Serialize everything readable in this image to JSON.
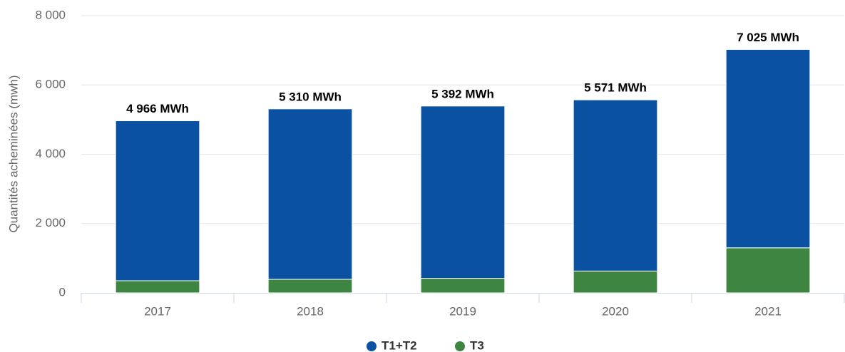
{
  "chart_data": {
    "type": "stacked_bar",
    "y_axis_label": "Quantités acheminées (mwh)",
    "categories": [
      "2017",
      "2018",
      "2019",
      "2020",
      "2021"
    ],
    "series": [
      {
        "name": "T3",
        "color": "#3d8541",
        "values": [
          350,
          390,
          420,
          630,
          1300
        ]
      },
      {
        "name": "T1+T2",
        "color": "#0a52a1",
        "values": [
          4616,
          4920,
          4972,
          4941,
          5725
        ]
      }
    ],
    "legend_order": [
      1,
      0
    ],
    "totals": [
      4966,
      5310,
      5392,
      5571,
      7025
    ],
    "total_labels": [
      "4 966 MWh",
      "5 310 MWh",
      "5 392 MWh",
      "5 571 MWh",
      "7 025 MWh"
    ],
    "ylim": [
      0,
      8000
    ],
    "yticks": [
      0,
      {
        "value": 2000,
        "label": "2 000"
      },
      {
        "value": 4000,
        "label": "4 000"
      },
      {
        "value": 6000,
        "label": "6 000"
      },
      {
        "value": 8000,
        "label": "8 000"
      }
    ],
    "grid": true,
    "legend": "bottom"
  }
}
